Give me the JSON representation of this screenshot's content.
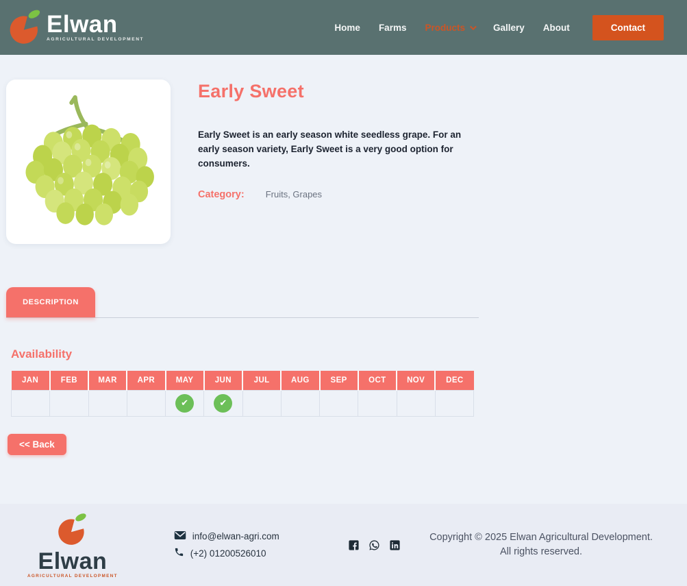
{
  "colors": {
    "header-bg": "#597170",
    "coral": "#f5716a",
    "orange": "#d4531e",
    "orange-link": "#cb5526",
    "page-bg": "#eef2f8",
    "footer-bg": "#e9ecf4",
    "check-green": "#6cbf58",
    "dark-text": "#1c2330",
    "gray-text": "#6a7280",
    "copyright-text": "#4b5262"
  },
  "header": {
    "logo": {
      "name": "Elwan",
      "tagline": "AGRICULTURAL DEVELOPMENT"
    },
    "nav": [
      {
        "label": "Home"
      },
      {
        "label": "Farms"
      },
      {
        "label": "Products"
      },
      {
        "label": "Gallery"
      },
      {
        "label": "About"
      }
    ],
    "contact_button_label": "Contact"
  },
  "product": {
    "title": "Early Sweet",
    "description": "Early Sweet is an early season white seedless grape. For an early season variety, Early Sweet is a very good option for consumers.",
    "category_label": "Category:",
    "category_value": "Fruits, Grapes"
  },
  "tabs": {
    "description_label": "DESCRIPTION"
  },
  "availability": {
    "heading": "Availability",
    "months": [
      "JAN",
      "FEB",
      "MAR",
      "APR",
      "MAY",
      "JUN",
      "JUL",
      "AUG",
      "SEP",
      "OCT",
      "NOV",
      "DEC"
    ],
    "available_months": [
      "MAY",
      "JUN"
    ]
  },
  "back_button_label": "<< Back",
  "footer": {
    "logo": {
      "name": "Elwan",
      "tagline": "AGRICULTURAL DEVELOPMENT"
    },
    "email": "info@elwan-agri.com",
    "phone": "(+2) 01200526010",
    "social": [
      "facebook",
      "whatsapp",
      "linkedin"
    ],
    "copyright": "Copyright © 2025 Elwan Agricultural Development. All rights reserved."
  }
}
